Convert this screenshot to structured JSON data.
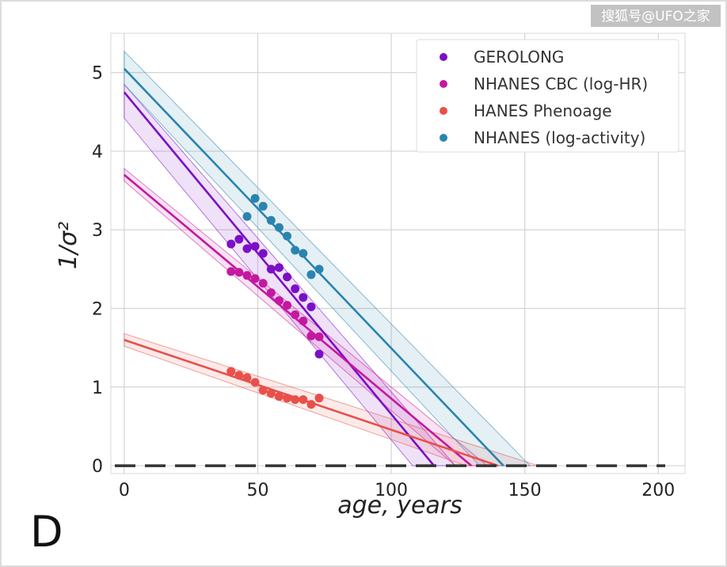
{
  "watermark": "搜狐号@UFO之家",
  "panel_label": "D",
  "chart_data": {
    "type": "scatter",
    "title": "",
    "xlabel": "age, years",
    "ylabel": "1/σ²",
    "xlim": [
      -5,
      210
    ],
    "ylim": [
      -0.1,
      5.5
    ],
    "xticks": [
      "0",
      "50",
      "100",
      "150",
      "200"
    ],
    "yticks": [
      "0",
      "1",
      "2",
      "3",
      "4",
      "5"
    ],
    "grid": true,
    "legend": "top-right",
    "zero_line": "dashed",
    "series": [
      {
        "name": "GEROLONG",
        "color": "#7B0FC8",
        "points": [
          [
            40,
            2.82
          ],
          [
            43,
            2.88
          ],
          [
            46,
            2.76
          ],
          [
            49,
            2.79
          ],
          [
            52,
            2.7
          ],
          [
            55,
            2.5
          ],
          [
            58,
            2.52
          ],
          [
            61,
            2.4
          ],
          [
            64,
            2.25
          ],
          [
            67,
            2.14
          ],
          [
            70,
            2.02
          ],
          [
            73,
            1.42
          ]
        ],
        "fit": [
          [
            0,
            4.75
          ],
          [
            116,
            0
          ]
        ],
        "band": [
          [
            0,
            4.85
          ],
          [
            0,
            4.42
          ],
          [
            108,
            0
          ],
          [
            124,
            0
          ]
        ]
      },
      {
        "name": "NHANES CBC (log-HR)",
        "color": "#C418A0",
        "points": [
          [
            40,
            2.47
          ],
          [
            43,
            2.46
          ],
          [
            46,
            2.42
          ],
          [
            49,
            2.38
          ],
          [
            52,
            2.32
          ],
          [
            55,
            2.2
          ],
          [
            58,
            2.1
          ],
          [
            61,
            2.04
          ],
          [
            64,
            1.92
          ],
          [
            67,
            1.84
          ],
          [
            70,
            1.65
          ],
          [
            73,
            1.64
          ]
        ],
        "fit": [
          [
            0,
            3.7
          ],
          [
            130,
            0
          ]
        ],
        "band": [
          [
            0,
            3.78
          ],
          [
            0,
            3.62
          ],
          [
            124,
            0
          ],
          [
            136,
            0
          ]
        ]
      },
      {
        "name": "HANES Phenoage",
        "color": "#E8504A",
        "points": [
          [
            40,
            1.2
          ],
          [
            43,
            1.15
          ],
          [
            46,
            1.12
          ],
          [
            49,
            1.06
          ],
          [
            52,
            0.96
          ],
          [
            55,
            0.92
          ],
          [
            58,
            0.88
          ],
          [
            61,
            0.86
          ],
          [
            64,
            0.84
          ],
          [
            67,
            0.84
          ],
          [
            70,
            0.78
          ],
          [
            73,
            0.86
          ]
        ],
        "fit": [
          [
            0,
            1.6
          ],
          [
            140,
            0
          ]
        ],
        "band": [
          [
            0,
            1.68
          ],
          [
            0,
            1.52
          ],
          [
            128,
            0
          ],
          [
            155,
            0
          ]
        ]
      },
      {
        "name": "NHANES (log-activity)",
        "color": "#2A84B0",
        "points": [
          [
            46,
            3.17
          ],
          [
            49,
            3.4
          ],
          [
            52,
            3.3
          ],
          [
            55,
            3.12
          ],
          [
            58,
            3.03
          ],
          [
            61,
            2.92
          ],
          [
            64,
            2.74
          ],
          [
            67,
            2.7
          ],
          [
            70,
            2.43
          ],
          [
            73,
            2.5
          ]
        ],
        "fit": [
          [
            0,
            5.05
          ],
          [
            142,
            0
          ]
        ],
        "band": [
          [
            0,
            5.27
          ],
          [
            0,
            4.85
          ],
          [
            133,
            0
          ],
          [
            152,
            0
          ]
        ]
      }
    ]
  }
}
